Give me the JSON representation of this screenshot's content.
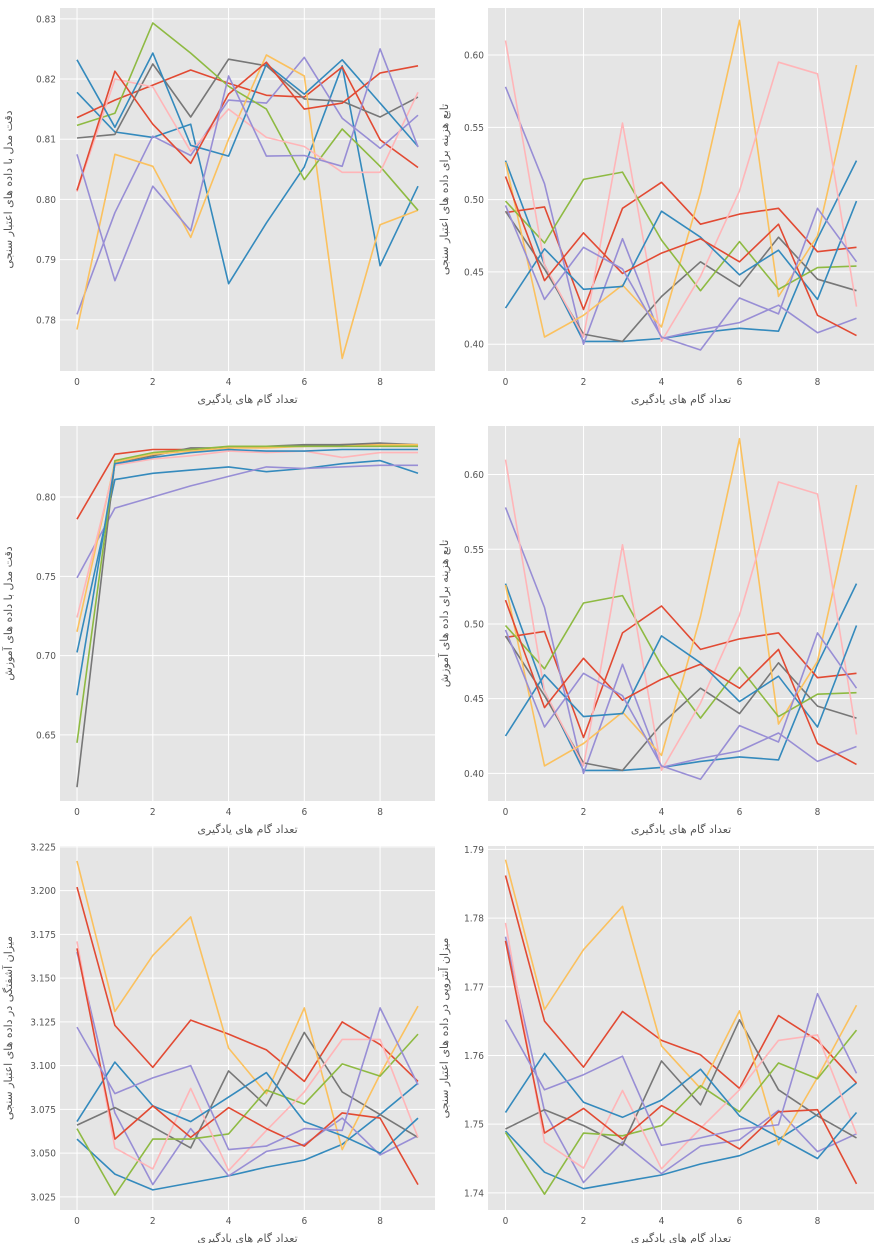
{
  "colors": [
    "#348abd",
    "#e24a33",
    "#988ed5",
    "#777777",
    "#fbc15e",
    "#8eba42",
    "#ffb5b8"
  ],
  "chart_data": [
    {
      "type": "line",
      "xlabel": "تعداد گام های یادگیری",
      "ylabel": "دقت مدل با داده های اعتبار سنجی",
      "xlim": [
        -0.45,
        9.45
      ],
      "ylim": [
        0.7715,
        0.8318
      ],
      "xticks": [
        0,
        2,
        4,
        6,
        8
      ],
      "yticks": [
        0.78,
        0.79,
        0.8,
        0.81,
        0.82,
        0.83
      ],
      "ytick_labels": [
        "0.78",
        "0.79",
        "0.80",
        "0.81",
        "0.82",
        "0.83"
      ],
      "grid": true,
      "x": [
        0,
        1,
        2,
        3,
        4,
        5,
        6,
        7,
        8,
        9
      ],
      "series": [
        {
          "values": [
            0.8178,
            0.8112,
            0.8103,
            0.8125,
            0.786,
            0.7961,
            0.8054,
            0.8222,
            0.789,
            0.8022
          ]
        },
        {
          "values": [
            0.8136,
            0.8165,
            0.819,
            0.8215,
            0.8193,
            0.8173,
            0.817,
            0.822,
            0.8099,
            0.8053
          ]
        },
        {
          "values": [
            0.7809,
            0.7978,
            0.8105,
            0.8073,
            0.8165,
            0.816,
            0.8236,
            0.8135,
            0.8085,
            0.814
          ]
        },
        {
          "values": [
            0.8102,
            0.8108,
            0.8225,
            0.8137,
            0.8233,
            0.8222,
            0.8167,
            0.8163,
            0.8137,
            0.817
          ]
        },
        {
          "values": [
            0.7784,
            0.8075,
            0.8055,
            0.7937,
            0.81,
            0.824,
            0.8205,
            0.7736,
            0.7958,
            0.7982
          ]
        },
        {
          "values": [
            0.8123,
            0.8143,
            0.8293,
            0.8243,
            0.8188,
            0.815,
            0.8033,
            0.8117,
            0.8055,
            0.7982
          ]
        },
        {
          "values": [
            0.8013,
            0.82,
            0.8187,
            0.808,
            0.815,
            0.8103,
            0.8088,
            0.8045,
            0.8045,
            0.8178
          ]
        },
        {
          "values": [
            0.8232,
            0.812,
            0.8243,
            0.809,
            0.8072,
            0.8225,
            0.8175,
            0.8232,
            0.816,
            0.8088
          ]
        },
        {
          "values": [
            0.8015,
            0.8213,
            0.8125,
            0.806,
            0.8175,
            0.8228,
            0.815,
            0.816,
            0.821,
            0.8222
          ]
        },
        {
          "values": [
            0.8075,
            0.7865,
            0.8022,
            0.7948,
            0.8205,
            0.8072,
            0.8073,
            0.8055,
            0.825,
            0.8087
          ]
        }
      ]
    },
    {
      "type": "line",
      "xlabel": "تعداد گام های یادگیری",
      "ylabel": "تابع هزینه برای داده های اعتبار سنجی",
      "xlim": [
        -0.45,
        9.45
      ],
      "ylim": [
        0.3815,
        0.6325
      ],
      "xticks": [
        0,
        2,
        4,
        6,
        8
      ],
      "yticks": [
        0.4,
        0.45,
        0.5,
        0.55,
        0.6
      ],
      "ytick_labels": [
        "0.40",
        "0.45",
        "0.50",
        "0.55",
        "0.60"
      ],
      "grid": true,
      "x": [
        0,
        1,
        2,
        3,
        4,
        5,
        6,
        7,
        8,
        9
      ],
      "series": [
        {
          "values": [
            0.527,
            0.455,
            0.402,
            0.402,
            0.404,
            0.408,
            0.411,
            0.409,
            0.473,
            0.527
          ]
        },
        {
          "values": [
            0.491,
            0.495,
            0.424,
            0.494,
            0.512,
            0.483,
            0.49,
            0.494,
            0.464,
            0.467
          ]
        },
        {
          "values": [
            0.578,
            0.511,
            0.4,
            0.473,
            0.404,
            0.41,
            0.415,
            0.427,
            0.408,
            0.418
          ]
        },
        {
          "values": [
            0.492,
            0.452,
            0.407,
            0.402,
            0.433,
            0.457,
            0.44,
            0.474,
            0.445,
            0.437
          ]
        },
        {
          "values": [
            0.526,
            0.405,
            0.42,
            0.441,
            0.412,
            0.505,
            0.624,
            0.433,
            0.475,
            0.593
          ]
        },
        {
          "values": [
            0.499,
            0.47,
            0.514,
            0.519,
            0.472,
            0.437,
            0.471,
            0.438,
            0.453,
            0.454
          ]
        },
        {
          "values": [
            0.61,
            0.455,
            0.405,
            0.553,
            0.402,
            0.447,
            0.506,
            0.595,
            0.587,
            0.426
          ]
        },
        {
          "values": [
            0.425,
            0.466,
            0.438,
            0.44,
            0.492,
            0.474,
            0.448,
            0.465,
            0.431,
            0.499
          ]
        },
        {
          "values": [
            0.516,
            0.444,
            0.477,
            0.449,
            0.463,
            0.473,
            0.457,
            0.483,
            0.42,
            0.406
          ]
        },
        {
          "values": [
            0.496,
            0.431,
            0.467,
            0.452,
            0.405,
            0.396,
            0.432,
            0.421,
            0.494,
            0.457
          ]
        }
      ]
    },
    {
      "type": "line",
      "xlabel": "تعداد گام های یادگیری",
      "ylabel": "دقت مدل با داده های آموزش",
      "xlim": [
        -0.45,
        9.45
      ],
      "ylim": [
        0.6083,
        0.8448
      ],
      "xticks": [
        0,
        2,
        4,
        6,
        8
      ],
      "yticks": [
        0.65,
        0.7,
        0.75,
        0.8
      ],
      "ytick_labels": [
        "0.65",
        "0.70",
        "0.75",
        "0.80"
      ],
      "grid": true,
      "x": [
        0,
        1,
        2,
        3,
        4,
        5,
        6,
        7,
        8,
        9
      ],
      "series": [
        {
          "values": [
            0.702,
            0.811,
            0.815,
            0.817,
            0.819,
            0.816,
            0.818,
            0.821,
            0.823,
            0.815
          ]
        },
        {
          "values": [
            0.786,
            0.827,
            0.83,
            0.83,
            0.831,
            0.832,
            0.832,
            0.833,
            0.833,
            0.832
          ]
        },
        {
          "values": [
            0.749,
            0.793,
            0.8,
            0.807,
            0.813,
            0.819,
            0.818,
            0.819,
            0.82,
            0.82
          ]
        },
        {
          "values": [
            0.617,
            0.822,
            0.826,
            0.831,
            0.831,
            0.832,
            0.833,
            0.833,
            0.834,
            0.833
          ]
        },
        {
          "values": [
            0.715,
            0.822,
            0.827,
            0.829,
            0.831,
            0.831,
            0.832,
            0.832,
            0.833,
            0.833
          ]
        },
        {
          "values": [
            0.645,
            0.823,
            0.828,
            0.83,
            0.832,
            0.832,
            0.832,
            0.832,
            0.832,
            0.832
          ]
        },
        {
          "values": [
            0.724,
            0.82,
            0.824,
            0.826,
            0.829,
            0.828,
            0.829,
            0.825,
            0.828,
            0.828
          ]
        },
        {
          "values": [
            0.675,
            0.821,
            0.825,
            0.828,
            0.83,
            0.829,
            0.829,
            0.83,
            0.83,
            0.83
          ]
        }
      ]
    },
    {
      "type": "line",
      "xlabel": "تعداد گام های یادگیری",
      "ylabel": "تابع هزینه برای داده های آموزش",
      "xlim": [
        -0.45,
        9.45
      ],
      "ylim": [
        0.3815,
        0.6325
      ],
      "xticks": [
        0,
        2,
        4,
        6,
        8
      ],
      "yticks": [
        0.4,
        0.45,
        0.5,
        0.55,
        0.6
      ],
      "ytick_labels": [
        "0.40",
        "0.45",
        "0.50",
        "0.55",
        "0.60"
      ],
      "grid": true,
      "x": [
        0,
        1,
        2,
        3,
        4,
        5,
        6,
        7,
        8,
        9
      ],
      "series": [
        {
          "values": [
            0.527,
            0.455,
            0.402,
            0.402,
            0.404,
            0.408,
            0.411,
            0.409,
            0.473,
            0.527
          ]
        },
        {
          "values": [
            0.491,
            0.495,
            0.424,
            0.494,
            0.512,
            0.483,
            0.49,
            0.494,
            0.464,
            0.467
          ]
        },
        {
          "values": [
            0.578,
            0.511,
            0.4,
            0.473,
            0.404,
            0.41,
            0.415,
            0.427,
            0.408,
            0.418
          ]
        },
        {
          "values": [
            0.492,
            0.452,
            0.407,
            0.402,
            0.433,
            0.457,
            0.44,
            0.474,
            0.445,
            0.437
          ]
        },
        {
          "values": [
            0.526,
            0.405,
            0.42,
            0.441,
            0.412,
            0.505,
            0.624,
            0.433,
            0.475,
            0.593
          ]
        },
        {
          "values": [
            0.499,
            0.47,
            0.514,
            0.519,
            0.472,
            0.437,
            0.471,
            0.438,
            0.453,
            0.454
          ]
        },
        {
          "values": [
            0.61,
            0.455,
            0.405,
            0.553,
            0.402,
            0.447,
            0.506,
            0.595,
            0.587,
            0.426
          ]
        },
        {
          "values": [
            0.425,
            0.466,
            0.438,
            0.44,
            0.492,
            0.474,
            0.448,
            0.465,
            0.431,
            0.499
          ]
        },
        {
          "values": [
            0.516,
            0.444,
            0.477,
            0.449,
            0.463,
            0.473,
            0.457,
            0.483,
            0.42,
            0.406
          ]
        },
        {
          "values": [
            0.496,
            0.431,
            0.467,
            0.452,
            0.405,
            0.396,
            0.432,
            0.421,
            0.494,
            0.457
          ]
        }
      ]
    },
    {
      "type": "line",
      "xlabel": "تعداد گام های یادگیری",
      "ylabel": "میزان آشفتگی در داده های اعتبار سنجی",
      "xlim": [
        -0.45,
        9.45
      ],
      "ylim": [
        3.0175,
        3.2255
      ],
      "xticks": [
        0,
        2,
        4,
        6,
        8
      ],
      "yticks": [
        3.025,
        3.05,
        3.075,
        3.1,
        3.125,
        3.15,
        3.175,
        3.2,
        3.225
      ],
      "ytick_labels": [
        "3.025",
        "3.050",
        "3.075",
        "3.100",
        "3.125",
        "3.150",
        "3.175",
        "3.200",
        "3.225"
      ],
      "grid": true,
      "x": [
        0,
        1,
        2,
        3,
        4,
        5,
        6,
        7,
        8,
        9
      ],
      "series": [
        {
          "values": [
            3.058,
            3.038,
            3.029,
            3.033,
            3.037,
            3.042,
            3.046,
            3.055,
            3.072,
            3.09
          ]
        },
        {
          "values": [
            3.202,
            3.123,
            3.099,
            3.126,
            3.118,
            3.109,
            3.091,
            3.125,
            3.112,
            3.091
          ]
        },
        {
          "values": [
            3.165,
            3.073,
            3.032,
            3.064,
            3.037,
            3.051,
            3.055,
            3.07,
            3.049,
            3.06
          ]
        },
        {
          "values": [
            3.066,
            3.076,
            3.065,
            3.053,
            3.097,
            3.077,
            3.119,
            3.085,
            3.072,
            3.059
          ]
        },
        {
          "values": [
            3.217,
            3.131,
            3.163,
            3.185,
            3.11,
            3.084,
            3.133,
            3.052,
            3.095,
            3.134
          ]
        },
        {
          "values": [
            3.064,
            3.026,
            3.058,
            3.058,
            3.061,
            3.086,
            3.078,
            3.101,
            3.094,
            3.118
          ]
        },
        {
          "values": [
            3.171,
            3.053,
            3.041,
            3.087,
            3.04,
            3.063,
            3.085,
            3.115,
            3.115,
            3.059
          ]
        },
        {
          "values": [
            3.068,
            3.102,
            3.077,
            3.068,
            3.082,
            3.096,
            3.068,
            3.06,
            3.05,
            3.07
          ]
        },
        {
          "values": [
            3.167,
            3.058,
            3.077,
            3.059,
            3.076,
            3.064,
            3.054,
            3.073,
            3.07,
            3.032
          ]
        },
        {
          "values": [
            3.122,
            3.084,
            3.093,
            3.1,
            3.052,
            3.054,
            3.064,
            3.063,
            3.133,
            3.089
          ]
        }
      ]
    },
    {
      "type": "line",
      "xlabel": "تعداد گام های یادگیری",
      "ylabel": "میزان آنتروپی در داده های اعتبار سنجی",
      "xlim": [
        -0.45,
        9.45
      ],
      "ylim": [
        1.7375,
        1.7905
      ],
      "xticks": [
        0,
        2,
        4,
        6,
        8
      ],
      "yticks": [
        1.74,
        1.75,
        1.76,
        1.77,
        1.78,
        1.79
      ],
      "ytick_labels": [
        "1.74",
        "1.75",
        "1.76",
        "1.77",
        "1.78",
        "1.79"
      ],
      "grid": true,
      "x": [
        0,
        1,
        2,
        3,
        4,
        5,
        6,
        7,
        8,
        9
      ],
      "series": [
        {
          "values": [
            1.749,
            1.743,
            1.7406,
            1.7416,
            1.7426,
            1.7442,
            1.7454,
            1.7478,
            1.7514,
            1.756
          ]
        },
        {
          "values": [
            1.7862,
            1.765,
            1.7583,
            1.7664,
            1.7622,
            1.7601,
            1.7552,
            1.7658,
            1.7622,
            1.756
          ]
        },
        {
          "values": [
            1.7773,
            1.7519,
            1.7415,
            1.7474,
            1.7428,
            1.7468,
            1.7477,
            1.752,
            1.746,
            1.7486
          ]
        },
        {
          "values": [
            1.7493,
            1.7521,
            1.7498,
            1.7469,
            1.7592,
            1.7528,
            1.7652,
            1.755,
            1.7512,
            1.748
          ]
        },
        {
          "values": [
            1.7885,
            1.7667,
            1.7754,
            1.7817,
            1.7614,
            1.7552,
            1.7665,
            1.747,
            1.7568,
            1.7673
          ]
        },
        {
          "values": [
            1.7488,
            1.7398,
            1.7487,
            1.7483,
            1.7498,
            1.7556,
            1.7518,
            1.7589,
            1.7566,
            1.7637
          ]
        },
        {
          "values": [
            1.7793,
            1.7474,
            1.7436,
            1.7549,
            1.7435,
            1.7494,
            1.755,
            1.7622,
            1.763,
            1.7486
          ]
        },
        {
          "values": [
            1.7517,
            1.7603,
            1.7532,
            1.751,
            1.7535,
            1.758,
            1.7512,
            1.7481,
            1.745,
            1.7517
          ]
        },
        {
          "values": [
            1.7767,
            1.7487,
            1.7523,
            1.7478,
            1.7527,
            1.7497,
            1.7464,
            1.7518,
            1.7521,
            1.7413
          ]
        },
        {
          "values": [
            1.7652,
            1.755,
            1.7572,
            1.7599,
            1.7469,
            1.748,
            1.7493,
            1.7499,
            1.769,
            1.7574
          ]
        }
      ]
    }
  ]
}
